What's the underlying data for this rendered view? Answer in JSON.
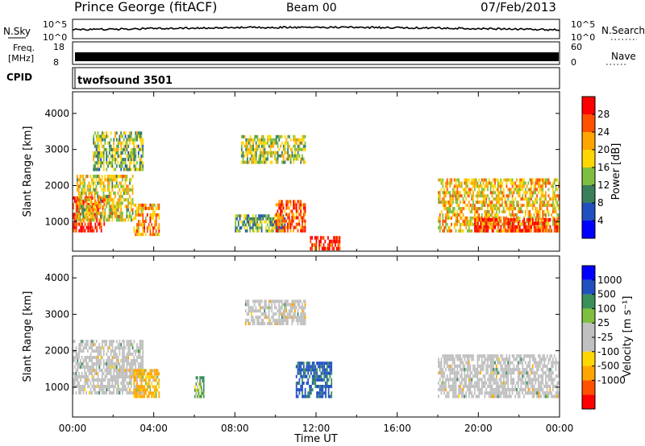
{
  "header": {
    "title": "Prince George (fitACF)",
    "beam": "Beam 00",
    "date": "07/Feb/2013"
  },
  "strips": {
    "nsky": {
      "label": "N.Sky",
      "scale_top": "10^5",
      "scale_bottom": "10^0"
    },
    "nsearch": {
      "label": "N.Search",
      "scale_top": "10^5",
      "scale_bottom": "10^0"
    },
    "freq": {
      "label_line1": "Freq.",
      "label_line2": "[MHz]",
      "scale_top": "18",
      "scale_bottom": "8"
    },
    "nave": {
      "label": "Nave",
      "scale_top": "60",
      "scale_bottom": "0"
    },
    "cpid": {
      "label": "CPID",
      "program": "twofsound 3501"
    }
  },
  "colors": {
    "power": [
      "#0000ff",
      "#2050c0",
      "#3a7f5a",
      "#7fbf3f",
      "#ffd700",
      "#ffa500",
      "#ff5000",
      "#ff0000"
    ],
    "velocity": [
      "#ff0000",
      "#ff5000",
      "#ffa500",
      "#ffd700",
      "#c0c0c0",
      "#c0c0c0",
      "#7fbf3f",
      "#3a8f5a",
      "#2050c0",
      "#0000ff"
    ],
    "ground_scatter": "#c0c0c0"
  },
  "chart_data": [
    {
      "type": "heatmap",
      "panel": "power",
      "ylabel": "Slant Range [km]",
      "xlabel": "",
      "xlim": [
        "00:00",
        "24:00"
      ],
      "ylim": [
        180,
        4600
      ],
      "x_ticks": [
        "00:00",
        "04:00",
        "08:00",
        "12:00",
        "16:00",
        "20:00",
        "00:00"
      ],
      "y_ticks": [
        1000,
        2000,
        3000,
        4000
      ],
      "colorbar": {
        "label": "Power [dB]",
        "range": [
          0,
          32
        ],
        "ticks": [
          "4",
          "8",
          "12",
          "16",
          "20",
          "24",
          "28"
        ]
      },
      "scatter_regions": [
        {
          "t0": 0.0,
          "t1": 1.6,
          "r0": 700,
          "r1": 1700,
          "level": 29
        },
        {
          "t0": 0.2,
          "t1": 3.0,
          "r0": 1000,
          "r1": 2300,
          "level": 18
        },
        {
          "t0": 1.0,
          "t1": 3.5,
          "r0": 2400,
          "r1": 3500,
          "level": 14
        },
        {
          "t0": 3.0,
          "t1": 4.3,
          "r0": 600,
          "r1": 1500,
          "level": 22
        },
        {
          "t0": 8.0,
          "t1": 10.5,
          "r0": 700,
          "r1": 1200,
          "level": 12
        },
        {
          "t0": 8.3,
          "t1": 11.5,
          "r0": 2600,
          "r1": 3400,
          "level": 16
        },
        {
          "t0": 10.0,
          "t1": 11.5,
          "r0": 700,
          "r1": 1600,
          "level": 26
        },
        {
          "t0": 11.7,
          "t1": 13.2,
          "r0": 200,
          "r1": 600,
          "level": 30
        },
        {
          "t0": 18.0,
          "t1": 24.0,
          "r0": 700,
          "r1": 2200,
          "level": 20
        },
        {
          "t0": 19.8,
          "t1": 24.0,
          "r0": 700,
          "r1": 1100,
          "level": 29
        }
      ]
    },
    {
      "type": "heatmap",
      "panel": "velocity",
      "ylabel": "Slant Range [km]",
      "xlabel": "Time UT",
      "xlim": [
        "00:00",
        "24:00"
      ],
      "ylim": [
        180,
        4600
      ],
      "x_ticks": [
        "00:00",
        "04:00",
        "08:00",
        "12:00",
        "16:00",
        "20:00",
        "00:00"
      ],
      "y_ticks": [
        1000,
        2000,
        3000,
        4000
      ],
      "colorbar": {
        "label": "Velocity [m s⁻¹]",
        "ticks": [
          "1000",
          "500",
          "100",
          "25",
          "-25",
          "-100",
          "-500",
          "-1000"
        ]
      },
      "scatter_regions": [
        {
          "t0": 0.0,
          "t1": 3.5,
          "r0": 800,
          "r1": 2300,
          "velocity": 0,
          "ground_scatter": true
        },
        {
          "t0": 3.0,
          "t1": 4.3,
          "r0": 700,
          "r1": 1500,
          "velocity": -200
        },
        {
          "t0": 6.0,
          "t1": 6.5,
          "r0": 700,
          "r1": 1300,
          "velocity": 150
        },
        {
          "t0": 8.5,
          "t1": 11.5,
          "r0": 2700,
          "r1": 3400,
          "velocity": 0,
          "ground_scatter": true
        },
        {
          "t0": 11.0,
          "t1": 12.8,
          "r0": 700,
          "r1": 1700,
          "velocity": 600
        },
        {
          "t0": 18.0,
          "t1": 24.0,
          "r0": 700,
          "r1": 1900,
          "velocity": 0,
          "ground_scatter": true
        }
      ]
    }
  ]
}
